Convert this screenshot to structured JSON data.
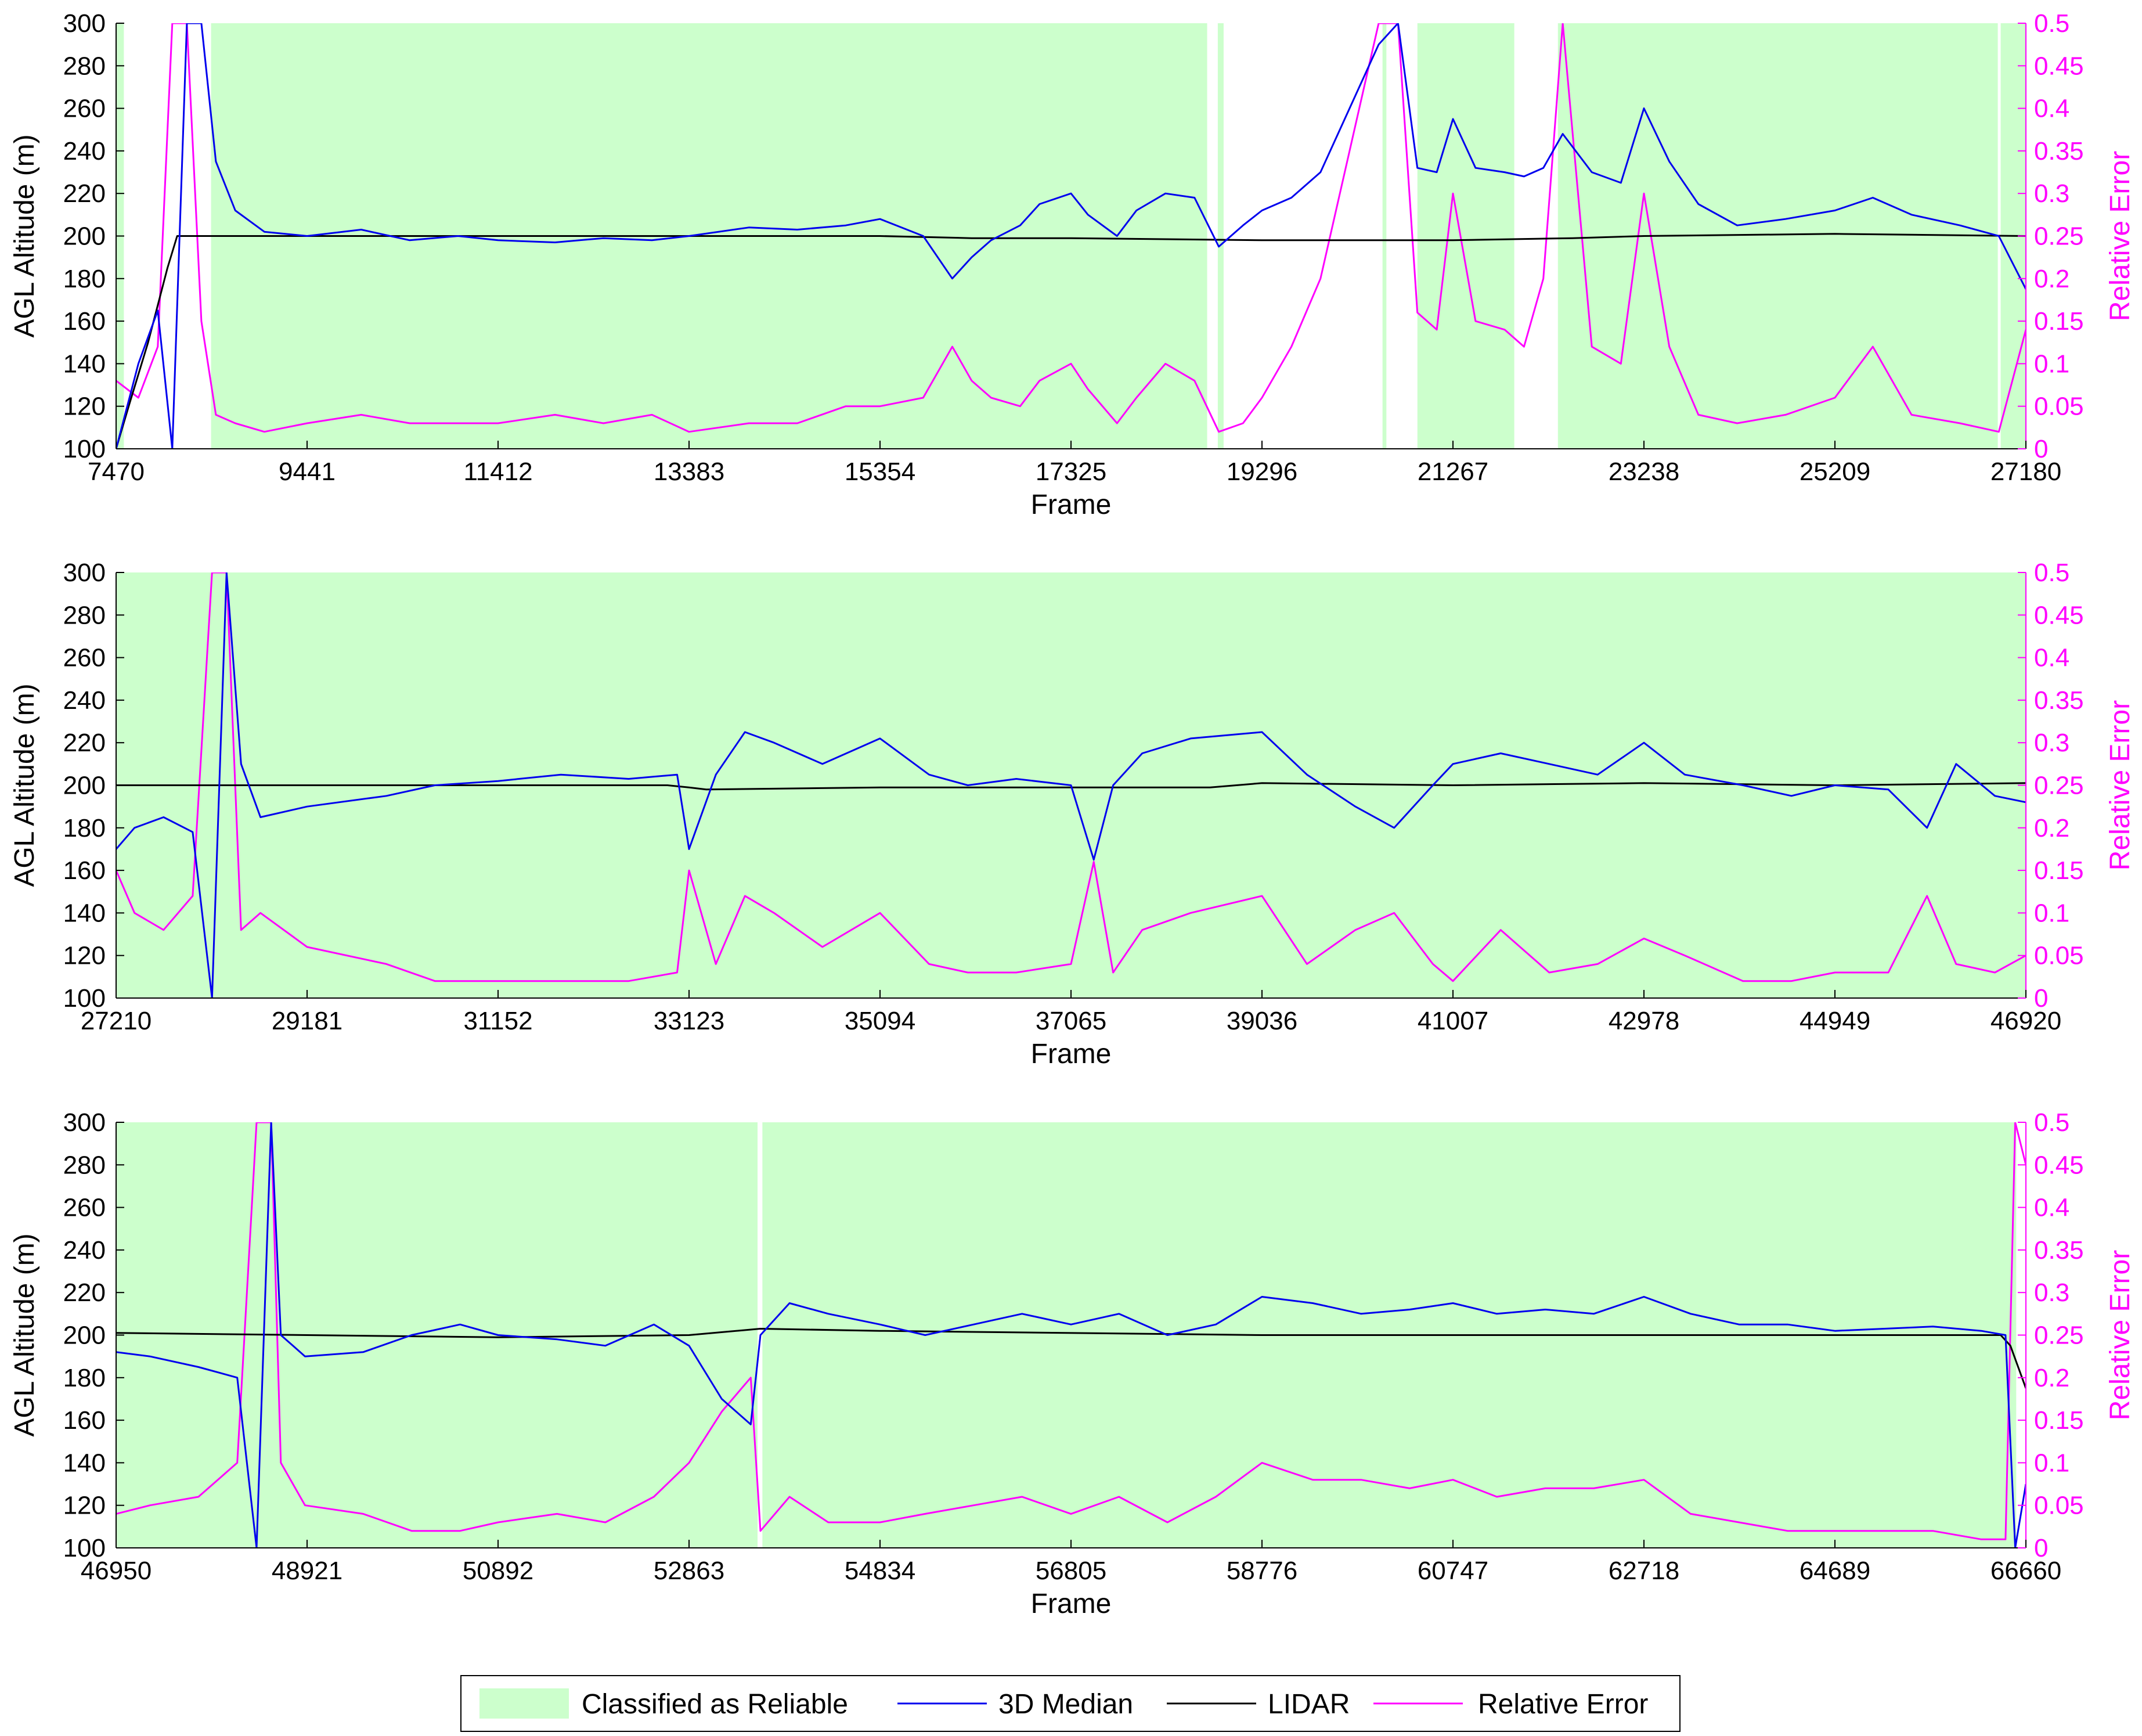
{
  "figure": {
    "legend": {
      "placement": "bottom-center",
      "entries": [
        {
          "label": "Classified as Reliable",
          "kind": "patch",
          "color": "#ccffcc"
        },
        {
          "label": "3D Median",
          "kind": "line",
          "color": "#0000ee"
        },
        {
          "label": "LIDAR",
          "kind": "line",
          "color": "#000000"
        },
        {
          "label": "Relative Error",
          "kind": "line",
          "color": "#ff00ff"
        }
      ]
    },
    "colors": {
      "reliable_fill": "#ccffcc",
      "median_line": "#0000ee",
      "lidar_line": "#000000",
      "error_line": "#ff00ff",
      "axis": "#000000"
    }
  },
  "chart_data": [
    {
      "type": "line",
      "xlabel": "Frame",
      "ylabel": "AGL Altitude (m)",
      "y2label": "Relative Error",
      "xlim": [
        7470,
        27180
      ],
      "ylim": [
        100,
        300
      ],
      "y2lim": [
        0,
        0.5
      ],
      "xticks": [
        "7470",
        "9441",
        "11412",
        "13383",
        "15354",
        "17325",
        "19296",
        "21267",
        "23238",
        "25209",
        "27180"
      ],
      "yticks": [
        "100",
        "120",
        "140",
        "160",
        "180",
        "200",
        "220",
        "240",
        "260",
        "280",
        "300"
      ],
      "y2ticks": [
        "0",
        "0.05",
        "0.1",
        "0.15",
        "0.2",
        "0.25",
        "0.3",
        "0.35",
        "0.4",
        "0.45",
        "0.5"
      ],
      "reliable_intervals": [
        [
          7470,
          7550
        ],
        [
          8450,
          18730
        ],
        [
          18840,
          18900
        ],
        [
          20540,
          20580
        ],
        [
          20900,
          21900
        ],
        [
          22350,
          26890
        ],
        [
          26920,
          27180
        ]
      ],
      "series": [
        {
          "name": "3D Median",
          "x": [
            7470,
            7700,
            7900,
            8050,
            8200,
            8350,
            8500,
            8700,
            9000,
            9441,
            10000,
            10500,
            11000,
            11412,
            12000,
            12500,
            13000,
            13383,
            14000,
            14500,
            15000,
            15354,
            15800,
            16100,
            16300,
            16500,
            16800,
            17000,
            17325,
            17500,
            17800,
            18000,
            18300,
            18600,
            18850,
            19100,
            19296,
            19600,
            19900,
            20200,
            20500,
            20700,
            20900,
            21100,
            21267,
            21500,
            21800,
            22000,
            22200,
            22400,
            22700,
            23000,
            23238,
            23500,
            23800,
            24200,
            24700,
            25209,
            25600,
            26000,
            26500,
            26900,
            27180
          ],
          "y": [
            100,
            140,
            165,
            100,
            300,
            300,
            235,
            212,
            202,
            200,
            203,
            198,
            200,
            198,
            197,
            199,
            198,
            200,
            204,
            203,
            205,
            208,
            200,
            180,
            190,
            198,
            205,
            215,
            220,
            210,
            200,
            212,
            220,
            218,
            195,
            205,
            212,
            218,
            230,
            260,
            290,
            300,
            232,
            230,
            255,
            232,
            230,
            228,
            232,
            248,
            230,
            225,
            260,
            235,
            215,
            205,
            208,
            212,
            218,
            210,
            205,
            200,
            175
          ]
        },
        {
          "name": "LIDAR",
          "x": [
            7470,
            7600,
            7800,
            8000,
            8100,
            8300,
            9441,
            11412,
            13383,
            15354,
            16300,
            17325,
            19296,
            20500,
            21267,
            22500,
            23238,
            25209,
            27180
          ],
          "y": [
            100,
            120,
            150,
            185,
            200,
            200,
            200,
            200,
            200,
            200,
            199,
            199,
            198,
            198,
            198,
            199,
            200,
            201,
            200
          ]
        },
        {
          "name": "Relative Error",
          "x": [
            7470,
            7700,
            7900,
            8050,
            8200,
            8350,
            8500,
            8700,
            9000,
            9441,
            10000,
            10500,
            11000,
            11412,
            12000,
            12500,
            13000,
            13383,
            14000,
            14500,
            15000,
            15354,
            15800,
            16100,
            16300,
            16500,
            16800,
            17000,
            17325,
            17500,
            17800,
            18000,
            18300,
            18600,
            18850,
            19100,
            19296,
            19600,
            19900,
            20200,
            20500,
            20700,
            20900,
            21100,
            21267,
            21500,
            21800,
            22000,
            22200,
            22400,
            22700,
            23000,
            23238,
            23500,
            23800,
            24200,
            24700,
            25209,
            25600,
            26000,
            26500,
            26900,
            27180
          ],
          "y": [
            0.08,
            0.06,
            0.12,
            0.5,
            0.5,
            0.15,
            0.04,
            0.03,
            0.02,
            0.03,
            0.04,
            0.03,
            0.03,
            0.03,
            0.04,
            0.03,
            0.04,
            0.02,
            0.03,
            0.03,
            0.05,
            0.05,
            0.06,
            0.12,
            0.08,
            0.06,
            0.05,
            0.08,
            0.1,
            0.07,
            0.03,
            0.06,
            0.1,
            0.08,
            0.02,
            0.03,
            0.06,
            0.12,
            0.2,
            0.35,
            0.5,
            0.5,
            0.16,
            0.14,
            0.3,
            0.15,
            0.14,
            0.12,
            0.2,
            0.5,
            0.12,
            0.1,
            0.3,
            0.12,
            0.04,
            0.03,
            0.04,
            0.06,
            0.12,
            0.04,
            0.03,
            0.02,
            0.14
          ]
        }
      ]
    },
    {
      "type": "line",
      "xlabel": "Frame",
      "ylabel": "AGL Altitude (m)",
      "y2label": "Relative Error",
      "xlim": [
        27210,
        46920
      ],
      "ylim": [
        100,
        300
      ],
      "y2lim": [
        0,
        0.5
      ],
      "xticks": [
        "27210",
        "29181",
        "31152",
        "33123",
        "35094",
        "37065",
        "39036",
        "41007",
        "42978",
        "44949",
        "46920"
      ],
      "yticks": [
        "100",
        "120",
        "140",
        "160",
        "180",
        "200",
        "220",
        "240",
        "260",
        "280",
        "300"
      ],
      "y2ticks": [
        "0",
        "0.05",
        "0.1",
        "0.15",
        "0.2",
        "0.25",
        "0.3",
        "0.35",
        "0.4",
        "0.45",
        "0.5"
      ],
      "reliable_intervals": [
        [
          27210,
          46920
        ]
      ],
      "series": [
        {
          "name": "3D Median",
          "x": [
            27210,
            27400,
            27700,
            28000,
            28200,
            28350,
            28500,
            28700,
            29181,
            30000,
            30500,
            31152,
            31800,
            32500,
            33000,
            33123,
            33400,
            33700,
            34000,
            34500,
            35094,
            35600,
            36000,
            36500,
            37065,
            37300,
            37500,
            37800,
            38300,
            39036,
            39500,
            40000,
            40400,
            40800,
            41007,
            41500,
            42000,
            42500,
            42978,
            43400,
            44000,
            44500,
            44949,
            45500,
            45900,
            46200,
            46600,
            46920
          ],
          "y": [
            170,
            180,
            185,
            178,
            100,
            300,
            210,
            185,
            190,
            195,
            200,
            202,
            205,
            203,
            205,
            170,
            205,
            225,
            220,
            210,
            222,
            205,
            200,
            203,
            200,
            165,
            200,
            215,
            222,
            225,
            205,
            190,
            180,
            200,
            210,
            215,
            210,
            205,
            220,
            205,
            200,
            195,
            200,
            198,
            180,
            210,
            195,
            192
          ]
        },
        {
          "name": "LIDAR",
          "x": [
            27210,
            29181,
            31152,
            32900,
            33123,
            33300,
            35094,
            37065,
            38500,
            39036,
            41007,
            42978,
            44949,
            46920
          ],
          "y": [
            200,
            200,
            200,
            200,
            199,
            198,
            199,
            199,
            199,
            201,
            200,
            201,
            200,
            201
          ]
        },
        {
          "name": "Relative Error",
          "x": [
            27210,
            27400,
            27700,
            28000,
            28200,
            28350,
            28500,
            28700,
            29181,
            30000,
            30500,
            31152,
            31800,
            32500,
            33000,
            33123,
            33400,
            33700,
            34000,
            34500,
            35094,
            35600,
            36000,
            36500,
            37065,
            37300,
            37500,
            37800,
            38300,
            39036,
            39500,
            40000,
            40400,
            40800,
            41007,
            41500,
            42000,
            42500,
            42978,
            43400,
            44000,
            44500,
            44949,
            45500,
            45900,
            46200,
            46600,
            46920
          ],
          "y": [
            0.15,
            0.1,
            0.08,
            0.12,
            0.5,
            0.5,
            0.08,
            0.1,
            0.06,
            0.04,
            0.02,
            0.02,
            0.02,
            0.02,
            0.03,
            0.15,
            0.04,
            0.12,
            0.1,
            0.06,
            0.1,
            0.04,
            0.03,
            0.03,
            0.04,
            0.16,
            0.03,
            0.08,
            0.1,
            0.12,
            0.04,
            0.08,
            0.1,
            0.04,
            0.02,
            0.08,
            0.03,
            0.04,
            0.07,
            0.05,
            0.02,
            0.02,
            0.03,
            0.03,
            0.12,
            0.04,
            0.03,
            0.05
          ]
        }
      ]
    },
    {
      "type": "line",
      "xlabel": "Frame",
      "ylabel": "AGL Altitude (m)",
      "y2label": "Relative Error",
      "xlim": [
        46950,
        66660
      ],
      "ylim": [
        100,
        300
      ],
      "y2lim": [
        0,
        0.5
      ],
      "xticks": [
        "46950",
        "48921",
        "50892",
        "52863",
        "54834",
        "56805",
        "58776",
        "60747",
        "62718",
        "64689",
        "66660"
      ],
      "yticks": [
        "100",
        "120",
        "140",
        "160",
        "180",
        "200",
        "220",
        "240",
        "260",
        "280",
        "300"
      ],
      "y2ticks": [
        "0",
        "0.05",
        "0.1",
        "0.15",
        "0.2",
        "0.25",
        "0.3",
        "0.35",
        "0.4",
        "0.45",
        "0.5"
      ],
      "reliable_intervals": [
        [
          46950,
          53570
        ],
        [
          53620,
          66560
        ]
      ],
      "series": [
        {
          "name": "3D Median",
          "x": [
            46950,
            47300,
            47800,
            48200,
            48400,
            48550,
            48650,
            48900,
            49500,
            50000,
            50500,
            50892,
            51500,
            52000,
            52500,
            52863,
            53200,
            53500,
            53600,
            53900,
            54300,
            54834,
            55300,
            55800,
            56300,
            56805,
            57300,
            57800,
            58300,
            58776,
            59300,
            59800,
            60300,
            60747,
            61200,
            61700,
            62200,
            62718,
            63200,
            63700,
            64200,
            64689,
            65200,
            65700,
            66200,
            66450,
            66550,
            66660
          ],
          "y": [
            192,
            190,
            185,
            180,
            100,
            300,
            200,
            190,
            192,
            200,
            205,
            200,
            198,
            195,
            205,
            195,
            170,
            158,
            200,
            215,
            210,
            205,
            200,
            205,
            210,
            205,
            210,
            200,
            205,
            218,
            215,
            210,
            212,
            215,
            210,
            212,
            210,
            218,
            210,
            205,
            205,
            202,
            203,
            204,
            202,
            200,
            100,
            130
          ]
        },
        {
          "name": "LIDAR",
          "x": [
            46950,
            48921,
            50892,
            52863,
            53600,
            54834,
            58776,
            62718,
            64689,
            66400,
            66500,
            66660
          ],
          "y": [
            201,
            200,
            199,
            200,
            203,
            202,
            200,
            200,
            200,
            200,
            195,
            175
          ]
        },
        {
          "name": "Relative Error",
          "x": [
            46950,
            47300,
            47800,
            48200,
            48400,
            48550,
            48650,
            48900,
            49500,
            50000,
            50500,
            50892,
            51500,
            52000,
            52500,
            52863,
            53200,
            53500,
            53600,
            53900,
            54300,
            54834,
            55300,
            55800,
            56300,
            56805,
            57300,
            57800,
            58300,
            58776,
            59300,
            59800,
            60300,
            60747,
            61200,
            61700,
            62200,
            62718,
            63200,
            63700,
            64200,
            64689,
            65200,
            65700,
            66200,
            66450,
            66550,
            66660
          ],
          "y": [
            0.04,
            0.05,
            0.06,
            0.1,
            0.5,
            0.5,
            0.1,
            0.05,
            0.04,
            0.02,
            0.02,
            0.03,
            0.04,
            0.03,
            0.06,
            0.1,
            0.16,
            0.2,
            0.02,
            0.06,
            0.03,
            0.03,
            0.04,
            0.05,
            0.06,
            0.04,
            0.06,
            0.03,
            0.06,
            0.1,
            0.08,
            0.08,
            0.07,
            0.08,
            0.06,
            0.07,
            0.07,
            0.08,
            0.04,
            0.03,
            0.02,
            0.02,
            0.02,
            0.02,
            0.01,
            0.01,
            0.5,
            0.45
          ]
        }
      ]
    }
  ]
}
